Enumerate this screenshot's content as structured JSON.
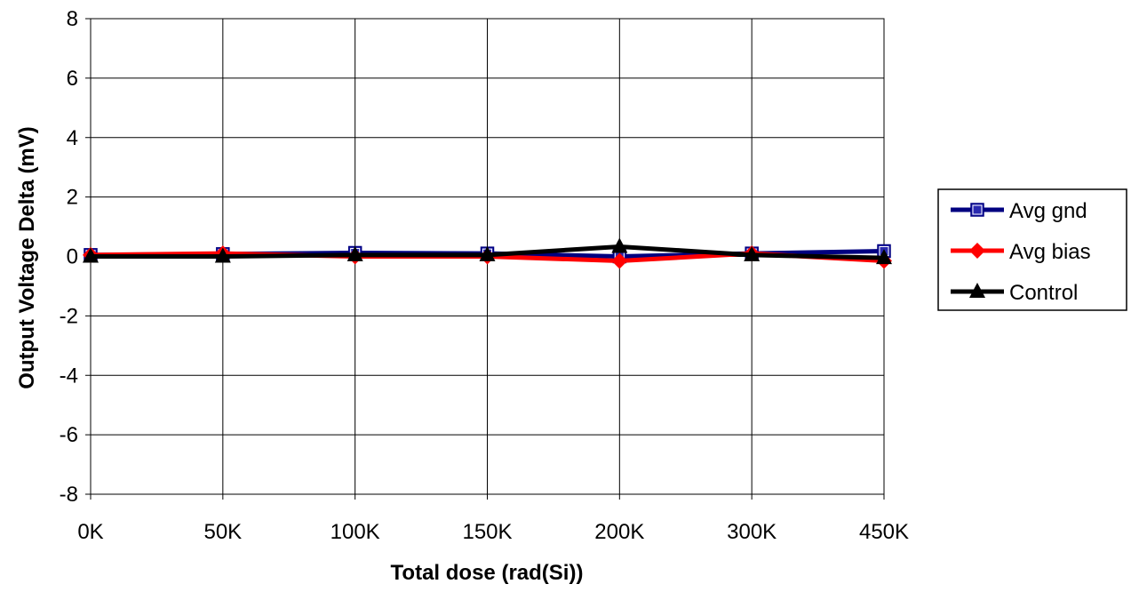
{
  "chart_data": {
    "type": "line",
    "categories": [
      "0K",
      "50K",
      "100K",
      "150K",
      "200K",
      "300K",
      "450K"
    ],
    "xlabel": "Total dose (rad(Si))",
    "ylabel": "Output Voltage Delta (mV)",
    "ylim": [
      -8,
      8
    ],
    "yticks": [
      "-8",
      "-6",
      "-4",
      "-2",
      "0",
      "2",
      "4",
      "6",
      "8"
    ],
    "grid": true,
    "legend_position": "right",
    "series": [
      {
        "name": "Avg gnd",
        "color": "#000080",
        "marker": "square",
        "values": [
          0.05,
          0.08,
          0.12,
          0.1,
          0.0,
          0.1,
          0.18
        ]
      },
      {
        "name": "Avg bias",
        "color": "#ff0000",
        "marker": "diamond",
        "values": [
          0.05,
          0.1,
          0.0,
          0.0,
          -0.15,
          0.1,
          -0.15
        ]
      },
      {
        "name": "Control",
        "color": "#000000",
        "marker": "triangle",
        "values": [
          0.0,
          0.0,
          0.05,
          0.05,
          0.33,
          0.05,
          -0.05
        ]
      }
    ]
  }
}
